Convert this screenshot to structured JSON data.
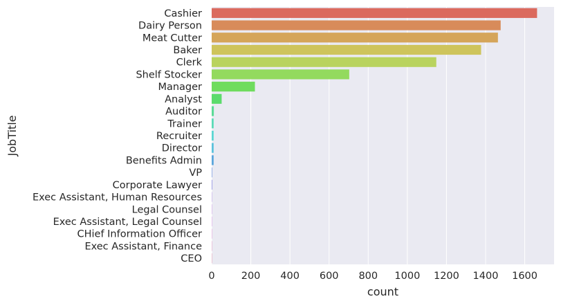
{
  "chart_data": {
    "type": "bar",
    "orientation": "horizontal",
    "xlabel": "count",
    "ylabel": "JobTitle",
    "xlim": [
      0,
      1750
    ],
    "x_ticks": [
      0,
      200,
      400,
      600,
      800,
      1000,
      1200,
      1400,
      1600
    ],
    "grid": true,
    "background": "#EAEAF2",
    "grid_color": "#FFFFFF",
    "categories": [
      "Cashier",
      "Dairy Person",
      "Meat Cutter",
      "Baker",
      "Clerk",
      "Shelf Stocker",
      "Manager",
      "Analyst",
      "Auditor",
      "Trainer",
      "Recruiter",
      "Director",
      "Benefits Admin",
      "VP",
      "Corporate Lawyer",
      "Exec Assistant, Human Resources",
      "Legal Counsel",
      "Exec Assistant, Legal Counsel",
      "CHief Information Officer",
      "Exec Assistant, Finance",
      "CEO"
    ],
    "values": [
      1663,
      1477,
      1463,
      1377,
      1148,
      703,
      221,
      51,
      11,
      10,
      10,
      10,
      10,
      2,
      2,
      1,
      1,
      1,
      1,
      1,
      1
    ],
    "colors": [
      "#DB6A5E",
      "#D88B5A",
      "#D5A55A",
      "#CEC45C",
      "#B9D35E",
      "#93DA5E",
      "#6FDC5E",
      "#5CDB6C",
      "#5CDB98",
      "#5CDBB8",
      "#5CD6D3",
      "#5CC2DC",
      "#5CA6DC",
      "#5C86DC",
      "#6C6CDC",
      "#8E5CDC",
      "#AE5CDC",
      "#CA5CD8",
      "#DC5CC4",
      "#DC5CA2",
      "#DC5C7E"
    ]
  }
}
